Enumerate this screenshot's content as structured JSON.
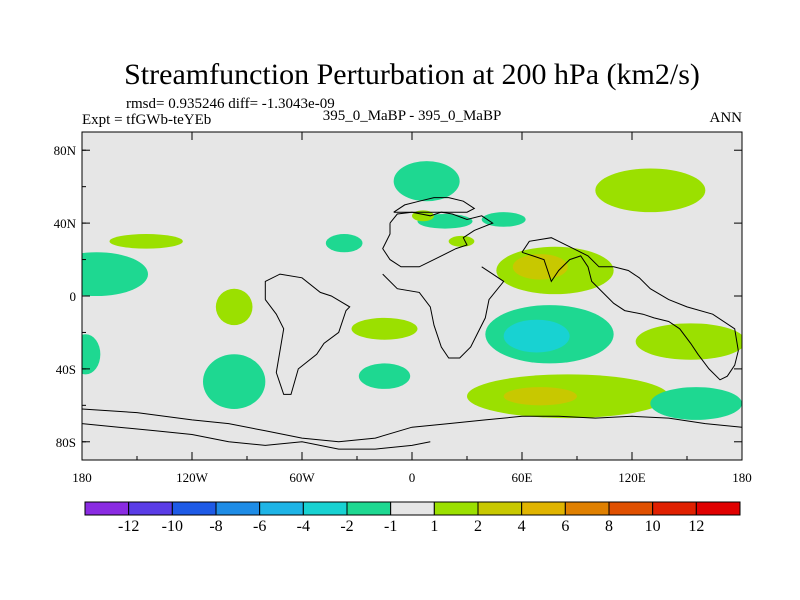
{
  "colors": {
    "ocean_bg": "#e6e6e6",
    "neg_1_2": "#1ed891",
    "neg_2_4": "#18d2d2",
    "pos_1_2": "#9be000",
    "pos_2_4": "#c8c800"
  },
  "chart_data": {
    "type": "contour_map",
    "title": "Streamfunction Perturbation at 200 hPa (km2/s)",
    "stats_text": "rmsd= 0.935246 diff= -1.3043e-09",
    "experiment_label": "Expt = tfGWb-teYEb",
    "case_label": "395_0_MaBP - 395_0_MaBP",
    "season_label": "ANN",
    "x_range": [
      -180,
      180
    ],
    "y_range": [
      -90,
      90
    ],
    "x_ticks": [
      {
        "value": -180,
        "label": "180"
      },
      {
        "value": -120,
        "label": "120W"
      },
      {
        "value": -60,
        "label": "60W"
      },
      {
        "value": 0,
        "label": "0"
      },
      {
        "value": 60,
        "label": "60E"
      },
      {
        "value": 120,
        "label": "120E"
      },
      {
        "value": 180,
        "label": "180"
      }
    ],
    "y_ticks": [
      {
        "value": 80,
        "label": "80N"
      },
      {
        "value": 40,
        "label": "40N"
      },
      {
        "value": 0,
        "label": "0"
      },
      {
        "value": -40,
        "label": "40S"
      },
      {
        "value": -80,
        "label": "80S"
      }
    ],
    "colorbar": {
      "labels": [
        "-12",
        "-10",
        "-8",
        "-6",
        "-4",
        "-2",
        "-1",
        "1",
        "2",
        "4",
        "6",
        "8",
        "10",
        "12"
      ],
      "colors": [
        "#8a2be2",
        "#5a3ce6",
        "#1e5ae6",
        "#1e8ce6",
        "#1eb4e6",
        "#18d2d2",
        "#1ed891",
        "#e6e6e6",
        "#9be000",
        "#c8c800",
        "#e0b400",
        "#e08000",
        "#e05000",
        "#e02000",
        "#e00000"
      ]
    },
    "regions": [
      {
        "name": "npac-east-pos",
        "level": "1 to 2",
        "color": "#9be000",
        "lon": -145,
        "lat": 30,
        "rlon": 20,
        "rlat": 4
      },
      {
        "name": "npac-east-neg",
        "level": "-2 to -1",
        "color": "#1ed891",
        "lon": -172,
        "lat": 12,
        "rlon": 28,
        "rlat": 12
      },
      {
        "name": "tropical-pac-pos",
        "level": "1 to 2",
        "color": "#9be000",
        "lon": -97,
        "lat": -6,
        "rlon": 10,
        "rlat": 10
      },
      {
        "name": "sam-west-neg",
        "level": "-2 to -1",
        "color": "#1ed891",
        "lon": -97,
        "lat": -47,
        "rlon": 17,
        "rlat": 15
      },
      {
        "name": "south-pac-neg",
        "level": "-2 to -1",
        "color": "#1ed891",
        "lon": -178,
        "lat": -32,
        "rlon": 8,
        "rlat": 11
      },
      {
        "name": "atl-north-neg",
        "level": "-2 to -1",
        "color": "#1ed891",
        "lon": -37,
        "lat": 29,
        "rlon": 10,
        "rlat": 5
      },
      {
        "name": "greenland-neg",
        "level": "-2 to -1",
        "color": "#1ed891",
        "lon": 8,
        "lat": 63,
        "rlon": 18,
        "rlat": 11
      },
      {
        "name": "europe-neg",
        "level": "-2 to -1",
        "color": "#1ed891",
        "lon": 18,
        "lat": 41,
        "rlon": 15,
        "rlat": 4
      },
      {
        "name": "asia-small-neg",
        "level": "-2 to -1",
        "color": "#1ed891",
        "lon": 50,
        "lat": 42,
        "rlon": 12,
        "rlat": 4
      },
      {
        "name": "siberia-pos",
        "level": "1 to 2",
        "color": "#9be000",
        "lon": 130,
        "lat": 58,
        "rlon": 30,
        "rlat": 12
      },
      {
        "name": "europe-small-pos",
        "level": "1 to 2",
        "color": "#9be000",
        "lon": 6,
        "lat": 44,
        "rlon": 6,
        "rlat": 3
      },
      {
        "name": "caspian-pos",
        "level": "1 to 2",
        "color": "#9be000",
        "lon": 27,
        "lat": 30,
        "rlon": 7,
        "rlat": 3
      },
      {
        "name": "india-pos",
        "level": "1 to 2",
        "color": "#9be000",
        "lon": 78,
        "lat": 14,
        "rlon": 32,
        "rlat": 13
      },
      {
        "name": "india-core",
        "level": "2 to 4",
        "color": "#c8c800",
        "lon": 70,
        "lat": 16,
        "rlon": 15,
        "rlat": 7
      },
      {
        "name": "indian-ocean-neg",
        "level": "-2 to -1",
        "color": "#1ed891",
        "lon": 75,
        "lat": -21,
        "rlon": 35,
        "rlat": 16
      },
      {
        "name": "indian-ocean-core",
        "level": "-4 to -2",
        "color": "#18d2d2",
        "lon": 68,
        "lat": -22,
        "rlon": 18,
        "rlat": 9
      },
      {
        "name": "west-pac-pos",
        "level": "1 to 2",
        "color": "#9be000",
        "lon": 152,
        "lat": -25,
        "rlon": 30,
        "rlat": 10
      },
      {
        "name": "atl-equator-pos",
        "level": "1 to 2",
        "color": "#9be000",
        "lon": -15,
        "lat": -18,
        "rlon": 18,
        "rlat": 6
      },
      {
        "name": "south-atl-neg",
        "level": "-2 to -1",
        "color": "#1ed891",
        "lon": -15,
        "lat": -44,
        "rlon": 14,
        "rlat": 7
      },
      {
        "name": "southern-pos",
        "level": "1 to 2",
        "color": "#9be000",
        "lon": 85,
        "lat": -55,
        "rlon": 55,
        "rlat": 12
      },
      {
        "name": "southern-core",
        "level": "2 to 4",
        "color": "#c8c800",
        "lon": 70,
        "lat": -55,
        "rlon": 20,
        "rlat": 5
      },
      {
        "name": "south-pac-east-neg",
        "level": "-2 to -1",
        "color": "#1ed891",
        "lon": 155,
        "lat": -59,
        "rlon": 25,
        "rlat": 9
      }
    ],
    "coastlines": [
      {
        "name": "north-africa-europe",
        "points": [
          [
            -12,
            40
          ],
          [
            -8,
            45
          ],
          [
            0,
            46
          ],
          [
            10,
            44
          ],
          [
            16,
            46
          ],
          [
            22,
            45
          ],
          [
            30,
            42
          ],
          [
            38,
            44
          ],
          [
            44,
            40
          ],
          [
            34,
            36
          ],
          [
            28,
            32
          ],
          [
            30,
            28
          ],
          [
            24,
            26
          ],
          [
            12,
            20
          ],
          [
            4,
            16
          ],
          [
            -6,
            16
          ],
          [
            -12,
            20
          ],
          [
            -16,
            26
          ],
          [
            -12,
            34
          ],
          [
            -12,
            40
          ]
        ]
      },
      {
        "name": "africa-south-coast",
        "points": [
          [
            -16,
            12
          ],
          [
            -8,
            4
          ],
          [
            4,
            2
          ],
          [
            10,
            -6
          ],
          [
            12,
            -16
          ],
          [
            16,
            -28
          ],
          [
            20,
            -34
          ],
          [
            26,
            -34
          ],
          [
            32,
            -28
          ],
          [
            36,
            -20
          ],
          [
            40,
            -12
          ],
          [
            42,
            -2
          ],
          [
            50,
            8
          ],
          [
            44,
            12
          ],
          [
            38,
            16
          ]
        ]
      },
      {
        "name": "americas-outline",
        "points": [
          [
            -80,
            -2
          ],
          [
            -74,
            -10
          ],
          [
            -70,
            -18
          ],
          [
            -72,
            -30
          ],
          [
            -74,
            -42
          ],
          [
            -70,
            -54
          ],
          [
            -66,
            -54
          ],
          [
            -62,
            -40
          ],
          [
            -52,
            -32
          ],
          [
            -48,
            -26
          ],
          [
            -40,
            -20
          ],
          [
            -36,
            -8
          ],
          [
            -34,
            -6
          ],
          [
            -44,
            0
          ],
          [
            -50,
            2
          ],
          [
            -60,
            10
          ],
          [
            -72,
            12
          ],
          [
            -80,
            8
          ],
          [
            -80,
            -2
          ]
        ]
      },
      {
        "name": "south-asia",
        "points": [
          [
            60,
            24
          ],
          [
            66,
            22
          ],
          [
            72,
            20
          ],
          [
            76,
            8
          ],
          [
            80,
            14
          ],
          [
            86,
            20
          ],
          [
            92,
            22
          ],
          [
            96,
            16
          ],
          [
            98,
            8
          ],
          [
            104,
            2
          ],
          [
            110,
            -4
          ],
          [
            116,
            -8
          ],
          [
            126,
            -10
          ],
          [
            132,
            -12
          ],
          [
            140,
            -14
          ],
          [
            146,
            -18
          ],
          [
            152,
            -26
          ],
          [
            156,
            -32
          ],
          [
            162,
            -40
          ],
          [
            168,
            -46
          ],
          [
            172,
            -44
          ],
          [
            176,
            -38
          ],
          [
            178,
            -30
          ],
          [
            176,
            -18
          ],
          [
            164,
            -10
          ],
          [
            150,
            -6
          ],
          [
            140,
            -2
          ],
          [
            130,
            4
          ],
          [
            124,
            10
          ],
          [
            118,
            14
          ],
          [
            110,
            16
          ],
          [
            102,
            16
          ],
          [
            96,
            22
          ],
          [
            88,
            26
          ],
          [
            76,
            32
          ],
          [
            64,
            30
          ],
          [
            60,
            24
          ]
        ]
      },
      {
        "name": "antarctica-edge",
        "points": [
          [
            -180,
            -62
          ],
          [
            -150,
            -64
          ],
          [
            -120,
            -68
          ],
          [
            -100,
            -70
          ],
          [
            -80,
            -74
          ],
          [
            -60,
            -78
          ],
          [
            -40,
            -80
          ],
          [
            -20,
            -78
          ],
          [
            0,
            -72
          ],
          [
            20,
            -70
          ],
          [
            40,
            -68
          ],
          [
            60,
            -66
          ],
          [
            80,
            -66
          ],
          [
            100,
            -67
          ],
          [
            120,
            -66
          ],
          [
            140,
            -67
          ],
          [
            160,
            -70
          ],
          [
            180,
            -72
          ]
        ]
      },
      {
        "name": "antarctic-peninsula",
        "points": [
          [
            -180,
            -70
          ],
          [
            -160,
            -72
          ],
          [
            -140,
            -74
          ],
          [
            -120,
            -76
          ],
          [
            -100,
            -80
          ],
          [
            -80,
            -82
          ],
          [
            -60,
            -80
          ],
          [
            -40,
            -84
          ],
          [
            -20,
            -84
          ],
          [
            0,
            -82
          ],
          [
            10,
            -80
          ]
        ]
      },
      {
        "name": "europe-north",
        "points": [
          [
            -10,
            46
          ],
          [
            -4,
            50
          ],
          [
            4,
            52
          ],
          [
            12,
            54
          ],
          [
            20,
            54
          ],
          [
            28,
            52
          ],
          [
            34,
            48
          ],
          [
            30,
            46
          ],
          [
            22,
            46
          ],
          [
            12,
            46
          ],
          [
            0,
            46
          ],
          [
            -10,
            46
          ]
        ]
      }
    ]
  }
}
